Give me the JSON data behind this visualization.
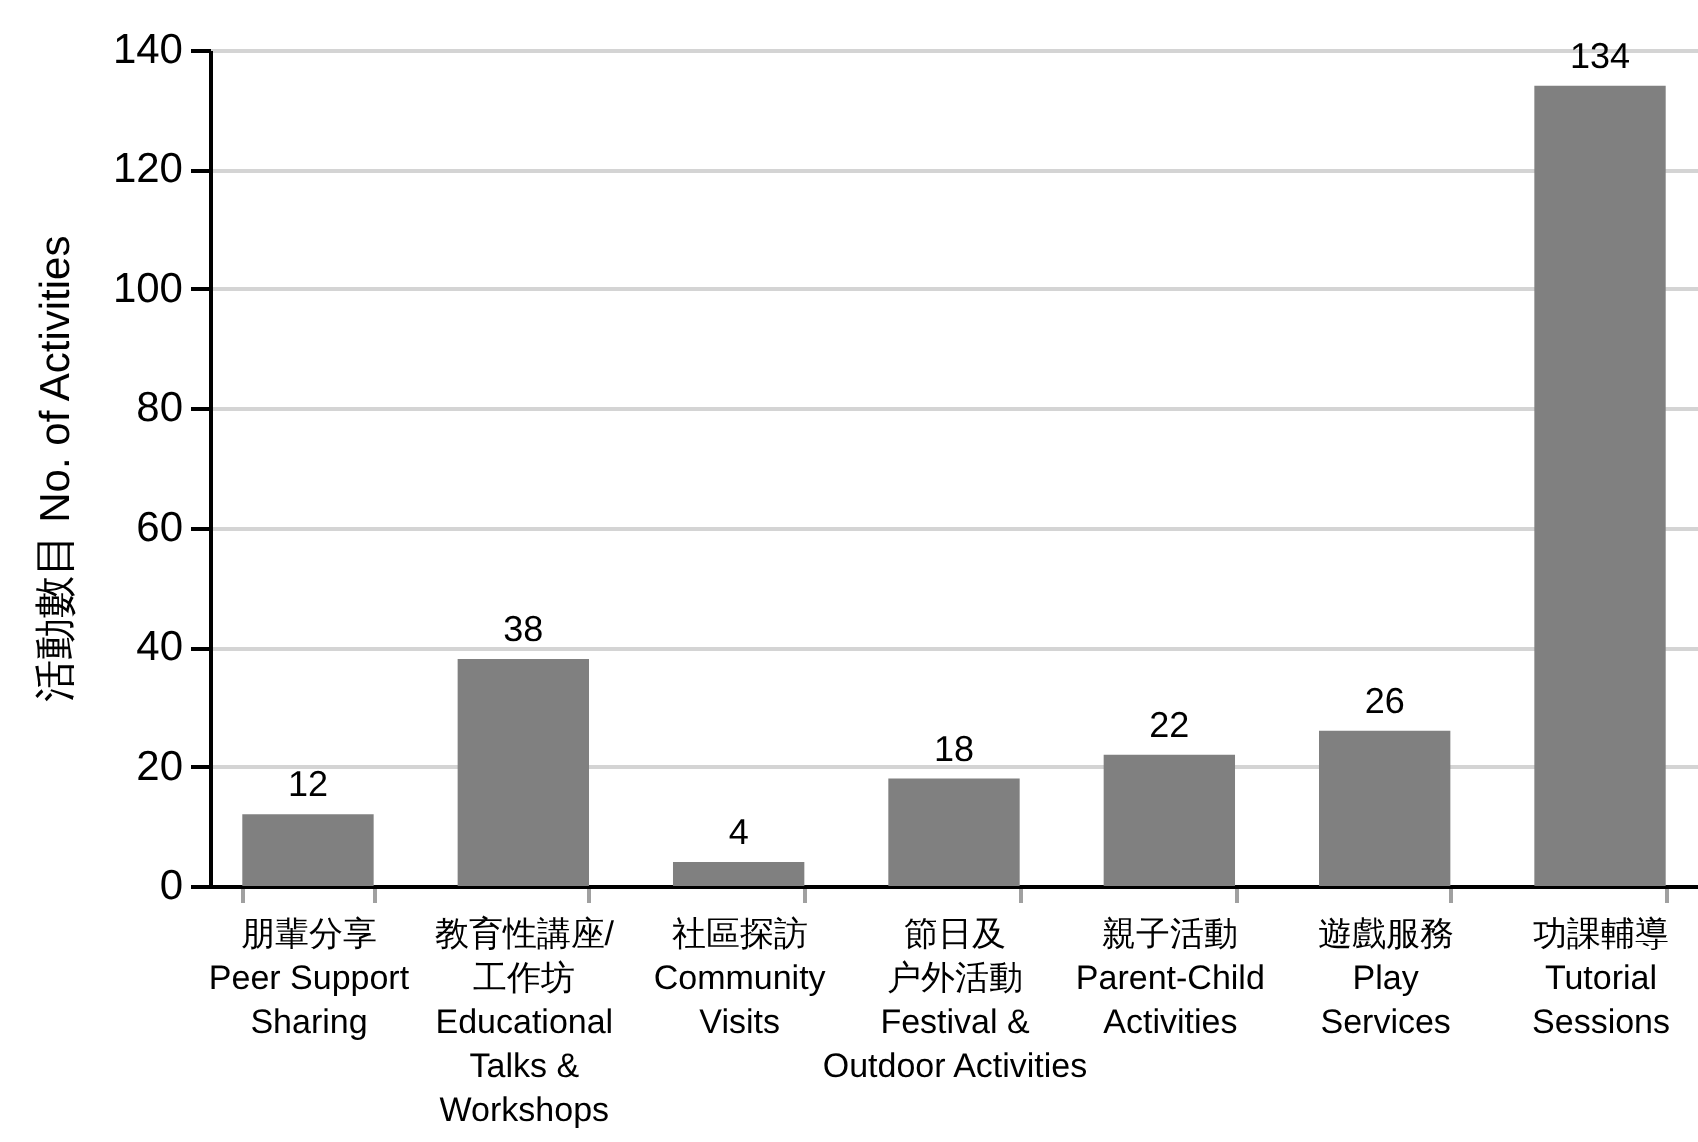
{
  "chart_data": {
    "type": "bar",
    "ylabel": "活動數目 No. of Activities",
    "categories": [
      "朋輩分享\nPeer Support\nSharing",
      "教育性講座/\n工作坊\nEducational\nTalks &\nWorkshops",
      "社區探訪\nCommunity\nVisits",
      "節日及户外活動\nFestival &\nOutdoor Activities",
      "親子活動\nParent-Child\nActivities",
      "遊戲服務\nPlay\nServices",
      "功課輔導\nTutorial\nSessions"
    ],
    "values": [
      12,
      38,
      4,
      18,
      22,
      26,
      134
    ],
    "color": "#808080",
    "ylim": [
      0,
      140
    ],
    "yticks": [
      0,
      20,
      40,
      60,
      80,
      100,
      120,
      140
    ],
    "grid": "y",
    "data_labels": true
  }
}
